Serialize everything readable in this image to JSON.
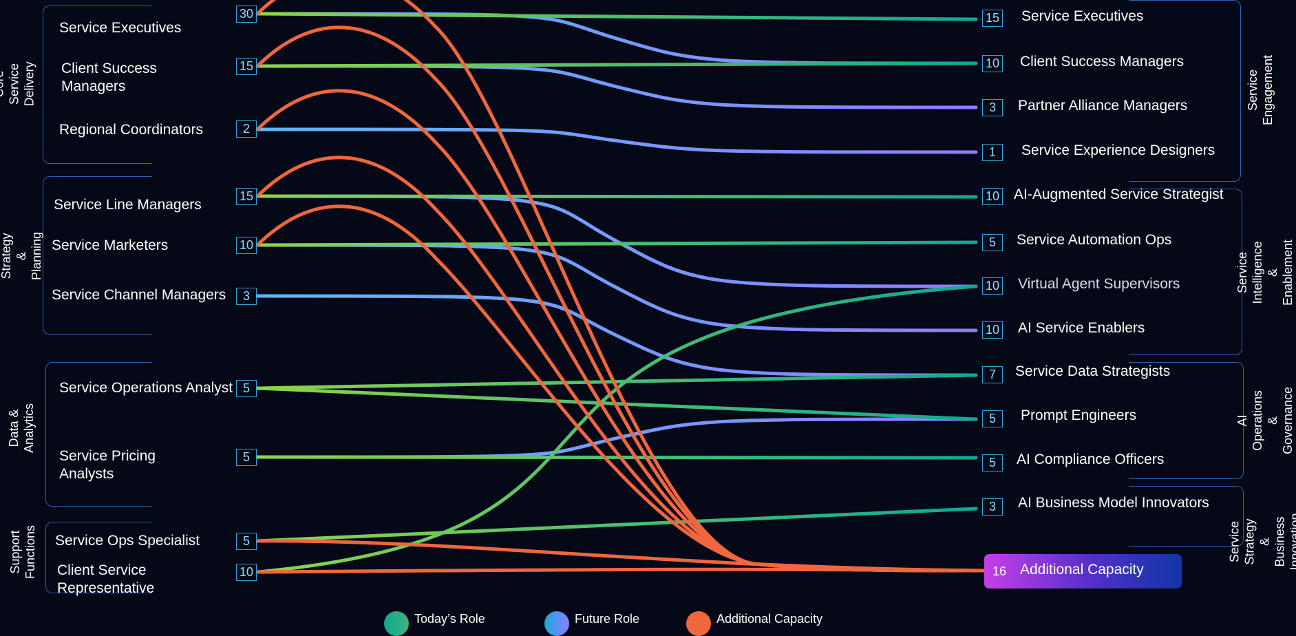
{
  "colors": {
    "today_start": "#8ed44a",
    "today_end": "#0ea994",
    "future_start": "#5ab8ff",
    "future_end": "#8f7cff",
    "additional": "#f0663d",
    "box_border": "#2b63b0",
    "count_border": "#2fa6d8",
    "background": "#050816"
  },
  "left_groups": [
    {
      "name": "Core Service Delivery"
    },
    {
      "name": "Service Strategy & Planning"
    },
    {
      "name": "Data &\nAnalytics"
    },
    {
      "name": "Support\nFunctions"
    }
  ],
  "right_groups": [
    {
      "name": "Service Engagement"
    },
    {
      "name": "Service Intelligence &\nEnablement"
    },
    {
      "name": "AI Operations &\nGovernance"
    },
    {
      "name": "Service Strategy &\nBusiness Innovation"
    }
  ],
  "left_roles": [
    {
      "label": "Service Executives",
      "count": "30"
    },
    {
      "label": "Client Success\nManagers",
      "count": "15"
    },
    {
      "label": "Regional Coordinators",
      "count": "2"
    },
    {
      "label": "Service Line Managers",
      "count": "15"
    },
    {
      "label": "Service Marketers",
      "count": "10"
    },
    {
      "label": "Service Channel Managers",
      "count": "3"
    },
    {
      "label": "Service Operations Analyst",
      "count": "5"
    },
    {
      "label": "Service Pricing\nAnalysts",
      "count": "5"
    },
    {
      "label": "Service Ops Specialist",
      "count": "5"
    },
    {
      "label": "Client Service\nRepresentative",
      "count": "10"
    }
  ],
  "right_roles": [
    {
      "label": "Service Executives",
      "count": "15"
    },
    {
      "label": "Client Success Managers",
      "count": "10"
    },
    {
      "label": "Partner Alliance Managers",
      "count": "3"
    },
    {
      "label": "Service Experience Designers",
      "count": "1"
    },
    {
      "label": "AI-Augmented Service Strategist",
      "count": "10"
    },
    {
      "label": "Service Automation Ops",
      "count": "5"
    },
    {
      "label": "Virtual Agent Supervisors",
      "count": "10"
    },
    {
      "label": "AI Service Enablers",
      "count": "10"
    },
    {
      "label": "Service Data Strategists",
      "count": "7"
    },
    {
      "label": "Prompt Engineers",
      "count": "5"
    },
    {
      "label": "AI Compliance Officers",
      "count": "5"
    },
    {
      "label": "AI Business Model Innovators",
      "count": "3"
    }
  ],
  "additional_capacity": {
    "label": "Additional Capacity",
    "count": "16"
  },
  "legend": [
    {
      "label": "Today’s Role"
    },
    {
      "label": "Future Role"
    },
    {
      "label": "Additional Capacity"
    }
  ],
  "flows": [
    {
      "from": 0,
      "to": 0,
      "type": "today"
    },
    {
      "from": 0,
      "to": 1,
      "type": "future"
    },
    {
      "from": 0,
      "to": "additional",
      "type": "additional"
    },
    {
      "from": 1,
      "to": 1,
      "type": "today"
    },
    {
      "from": 1,
      "to": 2,
      "type": "future"
    },
    {
      "from": 1,
      "to": "additional",
      "type": "additional"
    },
    {
      "from": 2,
      "to": 3,
      "type": "future"
    },
    {
      "from": 2,
      "to": "additional",
      "type": "additional"
    },
    {
      "from": 3,
      "to": 4,
      "type": "today"
    },
    {
      "from": 3,
      "to": 6,
      "type": "future"
    },
    {
      "from": 3,
      "to": "additional",
      "type": "additional"
    },
    {
      "from": 4,
      "to": 5,
      "type": "today"
    },
    {
      "from": 4,
      "to": 7,
      "type": "future"
    },
    {
      "from": 4,
      "to": "additional",
      "type": "additional"
    },
    {
      "from": 5,
      "to": 8,
      "type": "future"
    },
    {
      "from": 6,
      "to": 8,
      "type": "today"
    },
    {
      "from": 6,
      "to": 9,
      "type": "today"
    },
    {
      "from": 7,
      "to": 9,
      "type": "future"
    },
    {
      "from": 7,
      "to": 10,
      "type": "today"
    },
    {
      "from": 8,
      "to": 11,
      "type": "today"
    },
    {
      "from": 8,
      "to": "additional",
      "type": "additional"
    },
    {
      "from": 9,
      "to": 6,
      "type": "today"
    },
    {
      "from": 9,
      "to": "additional",
      "type": "additional"
    }
  ]
}
